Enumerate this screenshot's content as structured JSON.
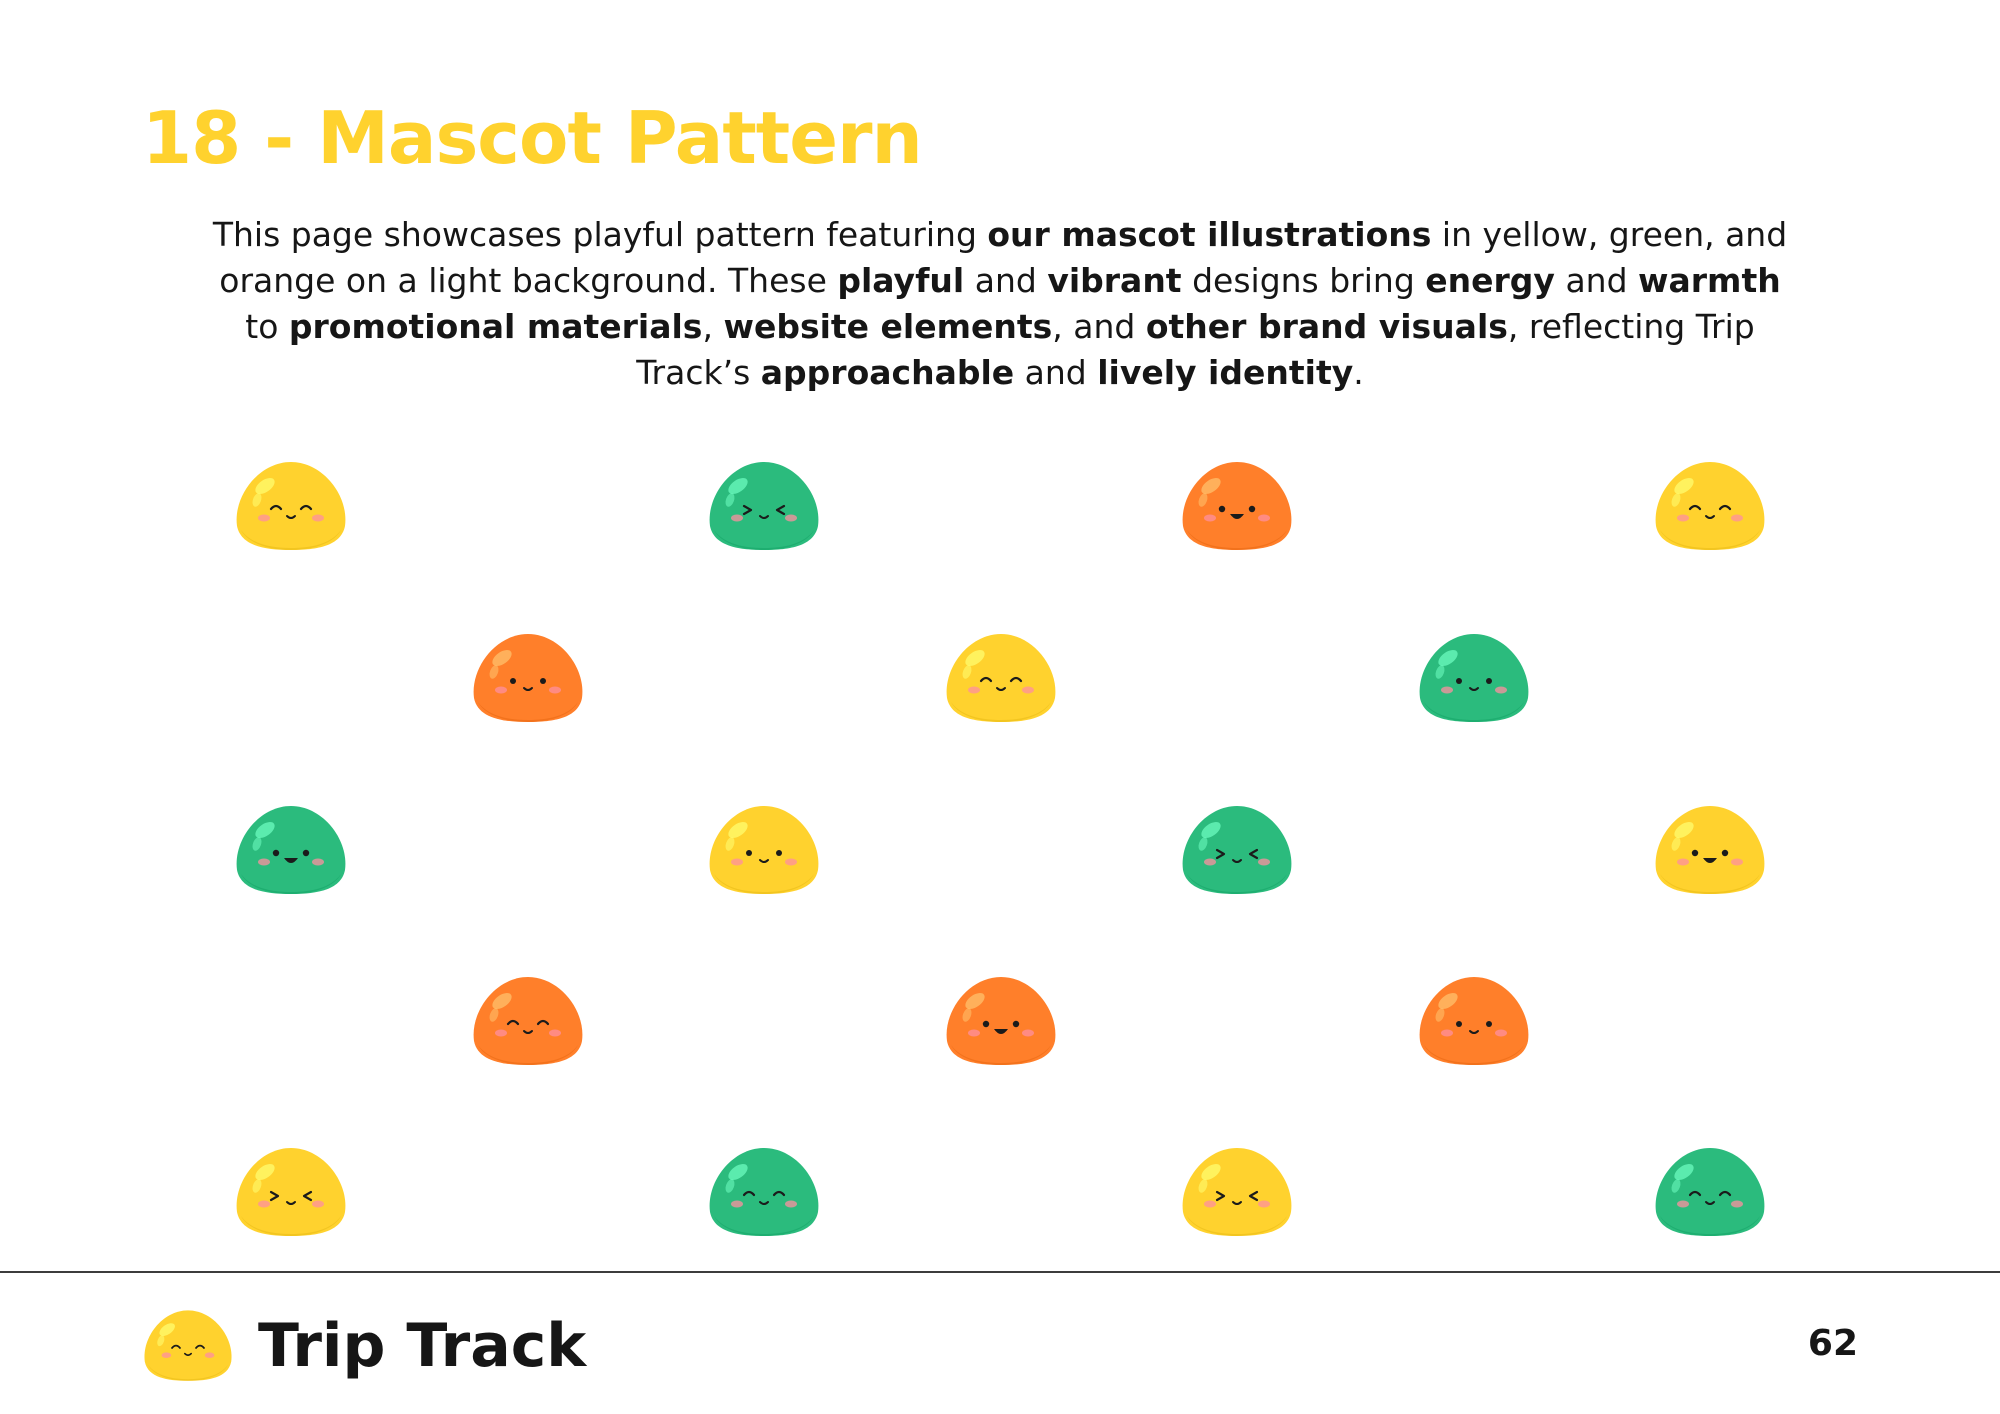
{
  "colors": {
    "accent": "#FFD22E",
    "yellow": "#FFD22E",
    "green": "#2BBB7D",
    "orange": "#FF7F2A",
    "text": "#161616"
  },
  "header": {
    "title": "18 - Mascot Pattern"
  },
  "description": [
    {
      "text": "This page showcases playful pattern featuring ",
      "bold": false
    },
    {
      "text": "our mascot illustrations",
      "bold": true
    },
    {
      "text": " in yellow, green, and orange on a light background. These ",
      "bold": false
    },
    {
      "text": "playful",
      "bold": true
    },
    {
      "text": " and ",
      "bold": false
    },
    {
      "text": "vibrant",
      "bold": true
    },
    {
      "text": " designs bring ",
      "bold": false
    },
    {
      "text": "energy",
      "bold": true
    },
    {
      "text": " and ",
      "bold": false
    },
    {
      "text": "warmth",
      "bold": true
    },
    {
      "text": " to ",
      "bold": false
    },
    {
      "text": "promotional materials",
      "bold": true
    },
    {
      "text": ", ",
      "bold": false
    },
    {
      "text": "website elements",
      "bold": true
    },
    {
      "text": ", and ",
      "bold": false
    },
    {
      "text": "other brand visuals",
      "bold": true
    },
    {
      "text": ", reflecting Trip Track’s ",
      "bold": false
    },
    {
      "text": "approachable",
      "bold": true
    },
    {
      "text": " and ",
      "bold": false
    },
    {
      "text": "lively identity",
      "bold": true
    },
    {
      "text": ".",
      "bold": false
    }
  ],
  "pattern": {
    "mascots": [
      {
        "color": "yellow",
        "face": "happy-closed"
      },
      {
        "color": "green",
        "face": "squint"
      },
      {
        "color": "orange",
        "face": "open-smile"
      },
      {
        "color": "yellow",
        "face": "happy-closed"
      },
      {
        "color": "orange",
        "face": "dot-eyes"
      },
      {
        "color": "yellow",
        "face": "happy-closed"
      },
      {
        "color": "green",
        "face": "dot-eyes"
      },
      {
        "color": "green",
        "face": "open-smile"
      },
      {
        "color": "yellow",
        "face": "dot-eyes"
      },
      {
        "color": "green",
        "face": "squint"
      },
      {
        "color": "yellow",
        "face": "open-smile"
      },
      {
        "color": "orange",
        "face": "happy-closed"
      },
      {
        "color": "orange",
        "face": "open-smile"
      },
      {
        "color": "orange",
        "face": "dot-eyes"
      },
      {
        "color": "yellow",
        "face": "squint"
      },
      {
        "color": "green",
        "face": "happy-closed"
      },
      {
        "color": "yellow",
        "face": "squint"
      },
      {
        "color": "green",
        "face": "happy-closed"
      }
    ]
  },
  "footer": {
    "logo_icon": "mascot-logo-icon",
    "brand_name": "Trip Track",
    "page_number": "62"
  }
}
